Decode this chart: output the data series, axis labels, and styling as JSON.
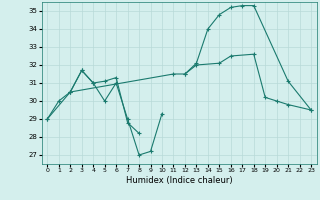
{
  "xlabel": "Humidex (Indice chaleur)",
  "xlim": [
    -0.5,
    23.5
  ],
  "ylim": [
    26.5,
    35.5
  ],
  "yticks": [
    27,
    28,
    29,
    30,
    31,
    32,
    33,
    34,
    35
  ],
  "xticks": [
    0,
    1,
    2,
    3,
    4,
    5,
    6,
    7,
    8,
    9,
    10,
    11,
    12,
    13,
    14,
    15,
    16,
    17,
    18,
    19,
    20,
    21,
    22,
    23
  ],
  "background_color": "#d4efed",
  "line_color": "#1a7a6e",
  "grid_color": "#b8dad8",
  "series": [
    {
      "x": [
        0,
        1,
        2,
        3,
        4,
        5,
        6,
        7,
        8,
        9,
        10
      ],
      "y": [
        29,
        30,
        30.5,
        31.7,
        31,
        30,
        31,
        29,
        27,
        27.2,
        29.3
      ]
    },
    {
      "x": [
        2,
        3,
        4,
        5,
        6,
        7,
        8
      ],
      "y": [
        30.5,
        31.7,
        31,
        31.1,
        31.3,
        28.8,
        28.2
      ]
    },
    {
      "x": [
        0,
        2,
        11,
        12,
        13,
        14,
        15,
        16,
        17,
        18,
        21,
        23
      ],
      "y": [
        29,
        30.5,
        31.5,
        31.5,
        32.1,
        34.0,
        34.8,
        35.2,
        35.3,
        35.3,
        31.1,
        29.5
      ]
    },
    {
      "x": [
        12,
        13,
        15,
        16,
        18,
        19,
        20,
        21,
        23
      ],
      "y": [
        31.5,
        32.0,
        32.1,
        32.5,
        32.6,
        30.2,
        30.0,
        29.8,
        29.5
      ]
    }
  ]
}
